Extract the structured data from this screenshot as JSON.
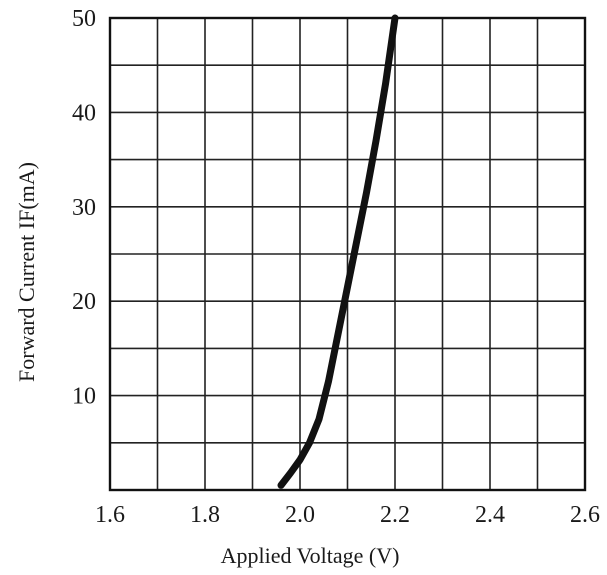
{
  "chart_data": {
    "type": "line",
    "title": "",
    "xlabel": "Applied Voltage  (V)",
    "ylabel": "Forward Current IF(mA)",
    "xlim": [
      1.6,
      2.6
    ],
    "ylim": [
      0,
      50
    ],
    "x_ticks": [
      1.6,
      1.7,
      1.8,
      1.9,
      2.0,
      2.1,
      2.2,
      2.3,
      2.4,
      2.5,
      2.6
    ],
    "y_ticks": [
      0,
      5,
      10,
      15,
      20,
      25,
      30,
      35,
      40,
      45,
      50
    ],
    "x_tick_labels": [
      "1.6",
      "1.8",
      "2.0",
      "2.2",
      "2.4",
      "2.6"
    ],
    "y_tick_labels": [
      "10",
      "20",
      "30",
      "40",
      "50"
    ],
    "grid": true,
    "series": [
      {
        "name": "",
        "color": "#111111",
        "x": [
          1.96,
          1.98,
          2.0,
          2.02,
          2.04,
          2.06,
          2.08,
          2.1,
          2.12,
          2.14,
          2.16,
          2.18,
          2.2
        ],
        "y": [
          0.5,
          1.8,
          3.2,
          5.0,
          7.5,
          11.5,
          16.5,
          21.5,
          26.5,
          31.5,
          37.0,
          43.0,
          50.0
        ]
      }
    ]
  }
}
